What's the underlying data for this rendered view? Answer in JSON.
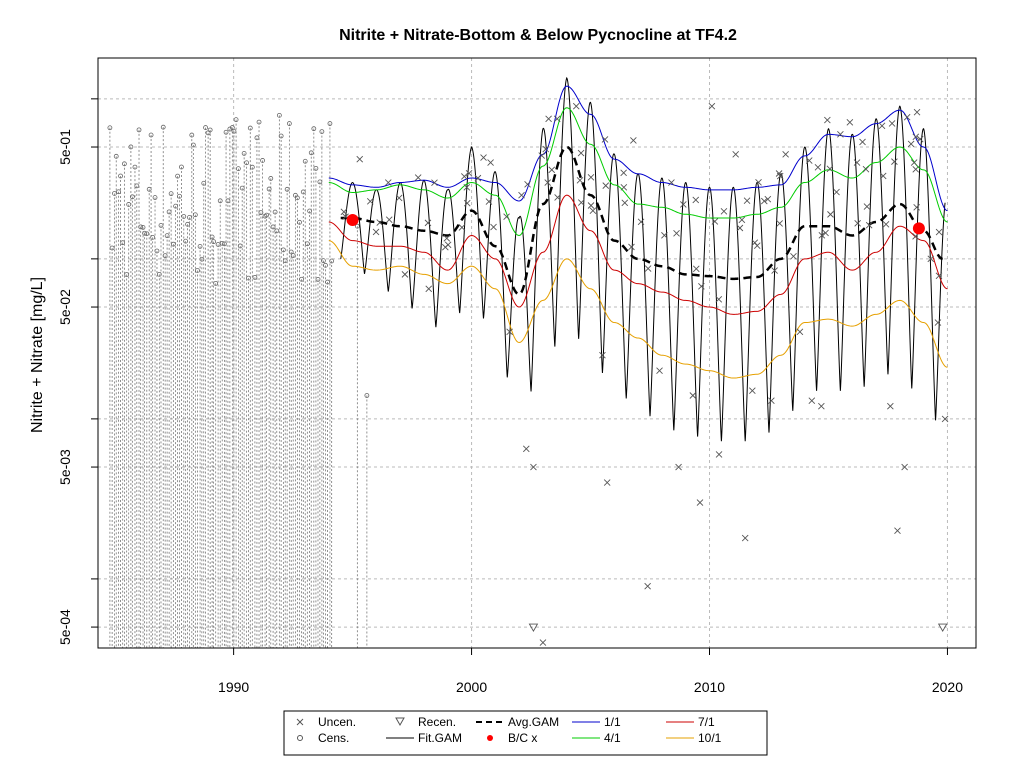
{
  "chart_data": {
    "type": "line",
    "title": "Nitrite + Nitrate-Bottom & Below Pycnocline at TF4.2",
    "xlabel": "",
    "ylabel": "Nitrite + Nitrate [mg/L]",
    "y_scale": "log",
    "xlim": [
      1984.3,
      2021.2
    ],
    "ylim": [
      0.00037,
      1.8
    ],
    "x_ticks": [
      1990,
      2000,
      2010,
      2020
    ],
    "x_tick_labels": [
      "1990",
      "2000",
      "2010",
      "2020"
    ],
    "y_ticks": [
      0.0005,
      0.005,
      0.05,
      0.5
    ],
    "y_tick_labels": [
      "5e-04",
      "5e-03",
      "5e-02",
      "5e-01"
    ],
    "grid_values_y": [
      0.0005,
      0.001,
      0.005,
      0.01,
      0.05,
      0.1,
      0.5,
      1
    ],
    "grid": true,
    "legend_position": "bottom",
    "legend": [
      {
        "label": "Uncen.",
        "symbol": "x",
        "color": "#555555"
      },
      {
        "label": "Cens.",
        "symbol": "o",
        "color": "#555555"
      },
      {
        "label": "Recen.",
        "symbol": "triangle-down",
        "color": "#555555"
      },
      {
        "label": "Fit.GAM",
        "symbol": "line",
        "color": "#000000"
      },
      {
        "label": "Avg.GAM",
        "symbol": "dashed-line",
        "color": "#000000"
      },
      {
        "label": "B/C x",
        "symbol": "dot",
        "color": "#ff0000"
      },
      {
        "label": "1/1",
        "symbol": "line",
        "color": "#0000cc"
      },
      {
        "label": "4/1",
        "symbol": "line",
        "color": "#00cc00"
      },
      {
        "label": "7/1",
        "symbol": "line",
        "color": "#cc0000"
      },
      {
        "label": "10/1",
        "symbol": "line",
        "color": "#e6a000"
      }
    ],
    "series": [
      {
        "name": "1/1",
        "color": "#0000cc",
        "x": [
          1994.0,
          1995.0,
          1996.0,
          1997.0,
          1998.0,
          1999.0,
          2000.0,
          2001.0,
          2002.0,
          2003.0,
          2004.0,
          2005.0,
          2006.0,
          2007.0,
          2008.0,
          2009.0,
          2010.0,
          2011.0,
          2012.0,
          2013.0,
          2014.0,
          2015.0,
          2016.0,
          2017.0,
          2018.0,
          2019.0,
          2020.0
        ],
        "y": [
          0.32,
          0.29,
          0.28,
          0.3,
          0.31,
          0.28,
          0.32,
          0.3,
          0.23,
          0.45,
          1.2,
          0.8,
          0.42,
          0.34,
          0.3,
          0.28,
          0.27,
          0.27,
          0.28,
          0.29,
          0.44,
          0.6,
          0.58,
          0.7,
          0.85,
          0.5,
          0.2
        ]
      },
      {
        "name": "4/1",
        "color": "#00cc00",
        "x": [
          1994.0,
          1995.0,
          1996.0,
          1997.0,
          1998.0,
          1999.0,
          2000.0,
          2001.0,
          2002.0,
          2003.0,
          2004.0,
          2005.0,
          2006.0,
          2007.0,
          2008.0,
          2009.0,
          2010.0,
          2011.0,
          2012.0,
          2013.0,
          2014.0,
          2015.0,
          2016.0,
          2017.0,
          2018.0,
          2019.0,
          2020.0
        ],
        "y": [
          0.3,
          0.26,
          0.27,
          0.29,
          0.27,
          0.24,
          0.3,
          0.25,
          0.14,
          0.38,
          0.88,
          0.52,
          0.29,
          0.22,
          0.21,
          0.19,
          0.18,
          0.18,
          0.19,
          0.21,
          0.3,
          0.36,
          0.32,
          0.4,
          0.5,
          0.36,
          0.17
        ]
      },
      {
        "name": "Avg.GAM",
        "color": "#000000",
        "dashed": true,
        "x": [
          1994.5,
          1995.0,
          1996.0,
          1997.0,
          1998.0,
          1999.0,
          2000.0,
          2001.0,
          2002.0,
          2003.0,
          2004.0,
          2005.0,
          2006.0,
          2007.0,
          2008.0,
          2009.0,
          2010.0,
          2011.0,
          2012.0,
          2013.0,
          2014.0,
          2015.0,
          2016.0,
          2017.0,
          2018.0,
          2019.0,
          2019.8
        ],
        "y": [
          0.18,
          0.18,
          0.17,
          0.16,
          0.15,
          0.14,
          0.2,
          0.12,
          0.06,
          0.22,
          0.5,
          0.25,
          0.13,
          0.1,
          0.09,
          0.08,
          0.078,
          0.075,
          0.077,
          0.1,
          0.16,
          0.16,
          0.14,
          0.17,
          0.22,
          0.15,
          0.1
        ]
      },
      {
        "name": "7/1",
        "color": "#cc0000",
        "x": [
          1994.0,
          1995.0,
          1996.0,
          1997.0,
          1998.0,
          1999.0,
          2000.0,
          2001.0,
          2002.0,
          2003.0,
          2004.0,
          2005.0,
          2006.0,
          2007.0,
          2008.0,
          2009.0,
          2010.0,
          2011.0,
          2012.0,
          2013.0,
          2014.0,
          2015.0,
          2016.0,
          2017.0,
          2018.0,
          2019.0,
          2020.0
        ],
        "y": [
          0.17,
          0.13,
          0.12,
          0.12,
          0.11,
          0.085,
          0.14,
          0.1,
          0.05,
          0.11,
          0.25,
          0.15,
          0.085,
          0.07,
          0.062,
          0.055,
          0.05,
          0.045,
          0.047,
          0.06,
          0.1,
          0.11,
          0.085,
          0.11,
          0.16,
          0.13,
          0.065
        ]
      },
      {
        "name": "10/1",
        "color": "#e6a000",
        "x": [
          1994.0,
          1995.0,
          1996.0,
          1997.0,
          1998.0,
          1999.0,
          2000.0,
          2001.0,
          2002.0,
          2003.0,
          2004.0,
          2005.0,
          2006.0,
          2007.0,
          2008.0,
          2009.0,
          2010.0,
          2011.0,
          2012.0,
          2013.0,
          2014.0,
          2015.0,
          2016.0,
          2017.0,
          2018.0,
          2019.0,
          2020.0
        ],
        "y": [
          0.13,
          0.09,
          0.085,
          0.09,
          0.08,
          0.07,
          0.09,
          0.065,
          0.03,
          0.055,
          0.1,
          0.065,
          0.04,
          0.032,
          0.025,
          0.022,
          0.02,
          0.018,
          0.019,
          0.025,
          0.04,
          0.042,
          0.038,
          0.045,
          0.055,
          0.04,
          0.021
        ]
      },
      {
        "name": "B/C x",
        "color": "#ff0000",
        "points": [
          {
            "x": 1995.0,
            "y": 0.175
          },
          {
            "x": 2018.8,
            "y": 0.155
          }
        ]
      }
    ],
    "uncensored_points": [
      [
        1995.3,
        0.42
      ],
      [
        1996.5,
        0.3
      ],
      [
        1997.2,
        0.08
      ],
      [
        1998.2,
        0.065
      ],
      [
        1999.8,
        0.28
      ],
      [
        2000.8,
        0.4
      ],
      [
        2001.6,
        0.035
      ],
      [
        2002.1,
        0.25
      ],
      [
        2002.3,
        0.0065
      ],
      [
        2002.6,
        0.005
      ],
      [
        2003.0,
        0.0004
      ],
      [
        2003.2,
        0.3
      ],
      [
        2003.6,
        0.75
      ],
      [
        2004.4,
        0.9
      ],
      [
        2005.1,
        0.2
      ],
      [
        2005.5,
        0.025
      ],
      [
        2005.7,
        0.004
      ],
      [
        2006.4,
        0.28
      ],
      [
        2006.8,
        0.55
      ],
      [
        2007.4,
        0.0009
      ],
      [
        2007.9,
        0.02
      ],
      [
        2008.4,
        0.3
      ],
      [
        2008.7,
        0.005
      ],
      [
        2009.3,
        0.014
      ],
      [
        2009.6,
        0.003
      ],
      [
        2010.1,
        0.9
      ],
      [
        2010.4,
        0.006
      ],
      [
        2011.1,
        0.45
      ],
      [
        2011.5,
        0.0018
      ],
      [
        2011.8,
        0.015
      ],
      [
        2012.6,
        0.013
      ],
      [
        2013.2,
        0.45
      ],
      [
        2013.8,
        0.035
      ],
      [
        2014.3,
        0.013
      ],
      [
        2014.7,
        0.012
      ],
      [
        2015.5,
        0.6
      ],
      [
        2016.2,
        0.4
      ],
      [
        2017.3,
        0.33
      ],
      [
        2017.6,
        0.012
      ],
      [
        2017.9,
        0.002
      ],
      [
        2018.2,
        0.005
      ],
      [
        2018.6,
        0.4
      ],
      [
        2019.3,
        0.1
      ],
      [
        2019.6,
        0.04
      ],
      [
        2019.9,
        0.01
      ]
    ],
    "censored_points_note": "",
    "recensored_points": [
      [
        2002.6,
        0.0005
      ],
      [
        2019.8,
        0.0005
      ]
    ],
    "fit_gam": {
      "period_years": 1.0,
      "start": 1994.5,
      "end": 2019.9,
      "peaks": [
        [
          1995,
          0.3
        ],
        [
          1996,
          0.27
        ],
        [
          1997,
          0.3
        ],
        [
          1998,
          0.31
        ],
        [
          1999,
          0.27
        ],
        [
          2000,
          0.5
        ],
        [
          2001,
          0.35
        ],
        [
          2002,
          0.18
        ],
        [
          2003,
          0.65
        ],
        [
          2004,
          1.35
        ],
        [
          2005,
          0.95
        ],
        [
          2006,
          0.45
        ],
        [
          2007,
          0.34
        ],
        [
          2008,
          0.32
        ],
        [
          2009,
          0.3
        ],
        [
          2010,
          0.28
        ],
        [
          2011,
          0.28
        ],
        [
          2012,
          0.3
        ],
        [
          2013,
          0.34
        ],
        [
          2014,
          0.5
        ],
        [
          2015,
          0.65
        ],
        [
          2016,
          0.6
        ],
        [
          2017,
          0.75
        ],
        [
          2018,
          0.9
        ],
        [
          2019,
          0.65
        ],
        [
          2020,
          0.25
        ]
      ],
      "troughs": [
        [
          1995,
          0.1
        ],
        [
          1996,
          0.065
        ],
        [
          1997,
          0.06
        ],
        [
          1998,
          0.04
        ],
        [
          1999,
          0.035
        ],
        [
          2000,
          0.06
        ],
        [
          2001,
          0.03
        ],
        [
          2002,
          0.011
        ],
        [
          2003,
          0.02
        ],
        [
          2004,
          0.04
        ],
        [
          2005,
          0.025
        ],
        [
          2006,
          0.015
        ],
        [
          2007,
          0.012
        ],
        [
          2008,
          0.009
        ],
        [
          2009,
          0.008
        ],
        [
          2010,
          0.0075
        ],
        [
          2011,
          0.007
        ],
        [
          2012,
          0.0075
        ],
        [
          2013,
          0.009
        ],
        [
          2014,
          0.014
        ],
        [
          2015,
          0.016
        ],
        [
          2016,
          0.014
        ],
        [
          2017,
          0.018
        ],
        [
          2018,
          0.02
        ],
        [
          2019,
          0.012
        ],
        [
          2020,
          0.008
        ]
      ]
    }
  }
}
